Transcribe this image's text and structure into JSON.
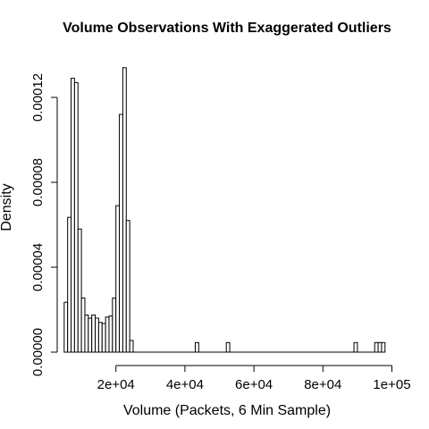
{
  "chart_data": {
    "type": "histogram",
    "title": "Volume Observations With Exaggerated Outliers",
    "xlabel": "Volume (Packets, 6 Min Sample)",
    "ylabel": "Density",
    "bin_width": 1000,
    "xlim": [
      5000,
      100000
    ],
    "ylim": [
      0,
      0.00013
    ],
    "x_ticks": [
      20000,
      40000,
      60000,
      80000,
      100000
    ],
    "x_tick_labels": [
      "2e+04",
      "4e+04",
      "6e+04",
      "8e+04",
      "1e+05"
    ],
    "y_ticks": [
      0,
      4e-05,
      8e-05,
      0.00012
    ],
    "y_tick_labels": [
      "0.00000",
      "0.00004",
      "0.00008",
      "0.00012"
    ],
    "bins": [
      {
        "x0": 5000,
        "x1": 6000,
        "density": 2.35e-05
      },
      {
        "x0": 6000,
        "x1": 7000,
        "density": 6.35e-05
      },
      {
        "x0": 7000,
        "x1": 8000,
        "density": 0.000129
      },
      {
        "x0": 8000,
        "x1": 9000,
        "density": 0.000127
      },
      {
        "x0": 9000,
        "x1": 10000,
        "density": 5.8e-05
      },
      {
        "x0": 10000,
        "x1": 11000,
        "density": 2.55e-05
      },
      {
        "x0": 11000,
        "x1": 12000,
        "density": 1.75e-05
      },
      {
        "x0": 12000,
        "x1": 13000,
        "density": 1.6e-05
      },
      {
        "x0": 13000,
        "x1": 14000,
        "density": 1.75e-05
      },
      {
        "x0": 14000,
        "x1": 15000,
        "density": 1.6e-05
      },
      {
        "x0": 15000,
        "x1": 16000,
        "density": 1.4e-05
      },
      {
        "x0": 16000,
        "x1": 17000,
        "density": 1.35e-05
      },
      {
        "x0": 17000,
        "x1": 18000,
        "density": 1.65e-05
      },
      {
        "x0": 18000,
        "x1": 19000,
        "density": 1.7e-05
      },
      {
        "x0": 19000,
        "x1": 20000,
        "density": 2.55e-05
      },
      {
        "x0": 20000,
        "x1": 21000,
        "density": 6.9e-05
      },
      {
        "x0": 21000,
        "x1": 22000,
        "density": 0.000112
      },
      {
        "x0": 22000,
        "x1": 23000,
        "density": 0.000134
      },
      {
        "x0": 23000,
        "x1": 24000,
        "density": 6.2e-05
      },
      {
        "x0": 24000,
        "x1": 25000,
        "density": 5.5e-06
      },
      {
        "x0": 43000,
        "x1": 44000,
        "density": 4.5e-06
      },
      {
        "x0": 52000,
        "x1": 53000,
        "density": 4.5e-06
      },
      {
        "x0": 89000,
        "x1": 90000,
        "density": 4.5e-06
      },
      {
        "x0": 95000,
        "x1": 96000,
        "density": 4.5e-06
      },
      {
        "x0": 96000,
        "x1": 97000,
        "density": 4.5e-06
      },
      {
        "x0": 97000,
        "x1": 98000,
        "density": 4.5e-06
      }
    ],
    "zero_range": [
      25000,
      98000
    ],
    "grid": false,
    "legend": "none"
  }
}
